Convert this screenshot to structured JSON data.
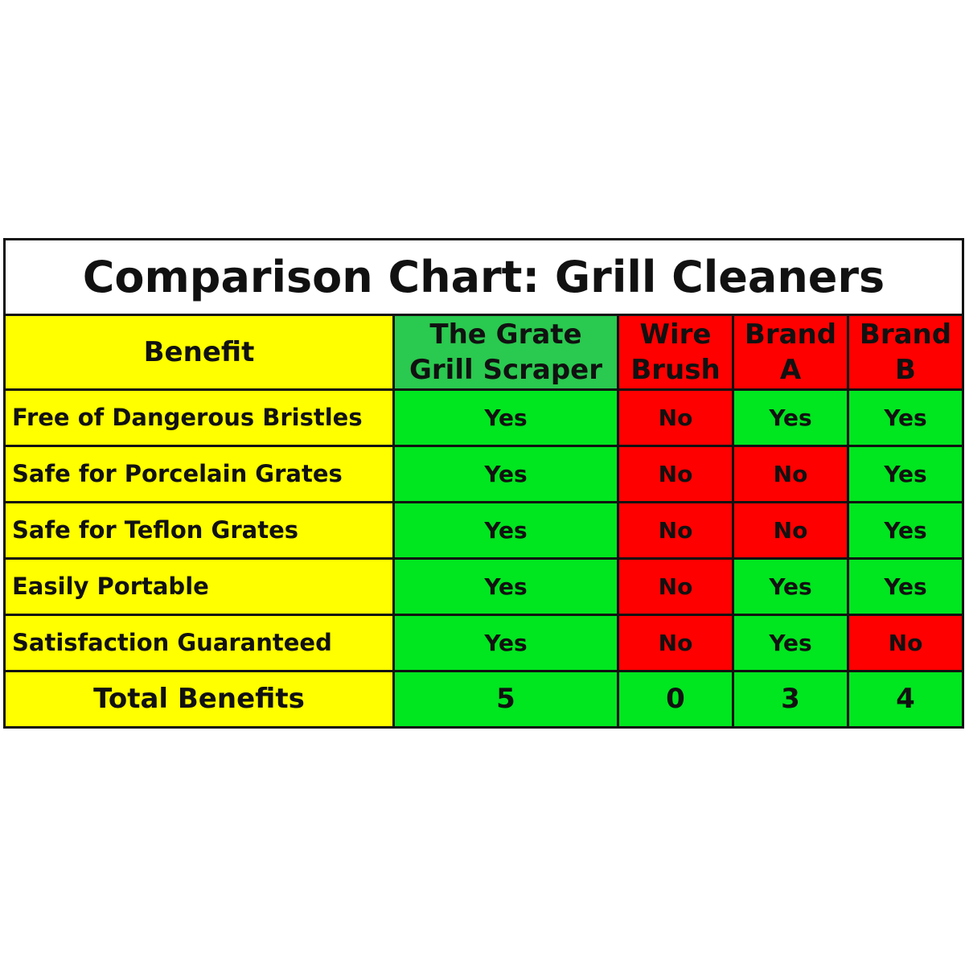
{
  "colors": {
    "yes": "#00e61f",
    "no": "#ff0000",
    "header_featured": "#2ac94f",
    "header_competitor": "#ff0000",
    "benefit_column": "#ffff00",
    "title_background": "#ffffff",
    "border": "#111111"
  },
  "chart_data": {
    "type": "table",
    "title": "Comparison Chart: Grill Cleaners",
    "columns": [
      {
        "lines": [
          "Benefit"
        ],
        "color": "#ffff00"
      },
      {
        "lines": [
          "The Grate",
          "Grill Scraper"
        ],
        "color": "#2ac94f"
      },
      {
        "lines": [
          "Wire",
          "Brush"
        ],
        "color": "#ff0000"
      },
      {
        "lines": [
          "Brand",
          "A"
        ],
        "color": "#ff0000"
      },
      {
        "lines": [
          "Brand",
          "B"
        ],
        "color": "#ff0000"
      }
    ],
    "rows": [
      {
        "benefit": "Free of Dangerous Bristles",
        "values": [
          "Yes",
          "No",
          "Yes",
          "Yes"
        ]
      },
      {
        "benefit": "Safe for Porcelain Grates",
        "values": [
          "Yes",
          "No",
          "No",
          "Yes"
        ]
      },
      {
        "benefit": "Safe for Teflon Grates",
        "values": [
          "Yes",
          "No",
          "No",
          "Yes"
        ]
      },
      {
        "benefit": "Easily Portable",
        "values": [
          "Yes",
          "No",
          "Yes",
          "Yes"
        ]
      },
      {
        "benefit": "Satisfaction Guaranteed",
        "values": [
          "Yes",
          "No",
          "Yes",
          "No"
        ]
      }
    ],
    "total": {
      "label": "Total Benefits",
      "values": [
        "5",
        "0",
        "3",
        "4"
      ]
    }
  }
}
